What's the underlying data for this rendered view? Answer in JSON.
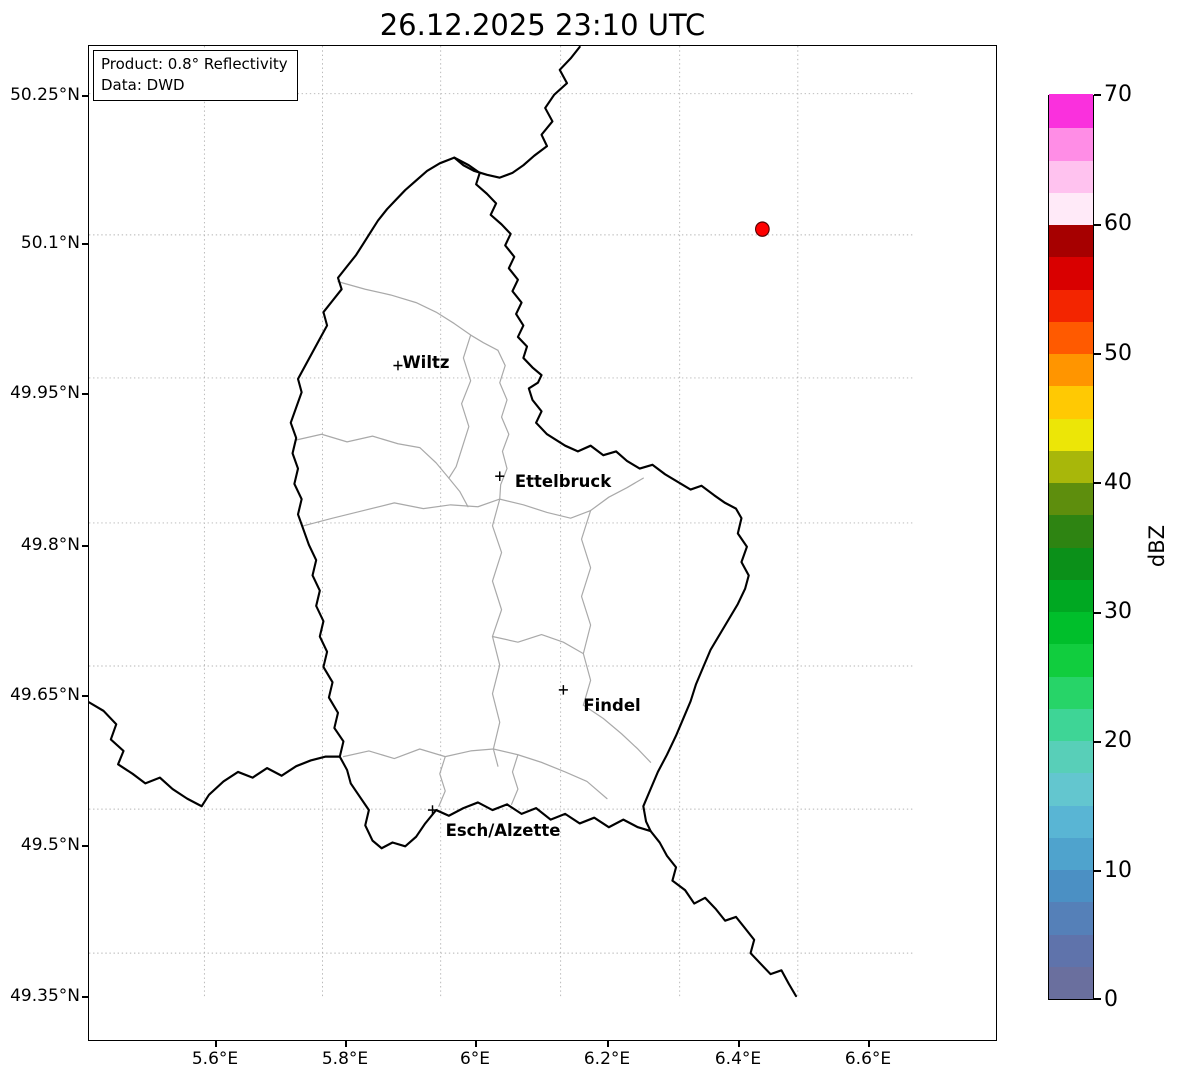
{
  "title": "26.12.2025 23:10 UTC",
  "info_box": {
    "product": "Product: 0.8° Reflectivity",
    "data_source": "Data: DWD"
  },
  "axes": {
    "x_tick_labels": [
      "5.6°E",
      "5.8°E",
      "6°E",
      "6.2°E",
      "6.4°E",
      "6.6°E"
    ],
    "y_tick_labels": [
      "50.25°N",
      "50.1°N",
      "49.95°N",
      "49.8°N",
      "49.65°N",
      "49.5°N",
      "49.35°N"
    ]
  },
  "map": {
    "region": "Luxembourg",
    "cities": [
      {
        "name": "Wiltz"
      },
      {
        "name": "Ettelbruck"
      },
      {
        "name": "Findel"
      },
      {
        "name": "Esch/Alzette"
      }
    ],
    "radar_marker_color": "#ff0000",
    "border_color": "#000000",
    "district_border_color": "#aaaaaa"
  },
  "colorbar": {
    "label": "dBZ",
    "min": 0,
    "max": 70,
    "tick_labels": [
      "0",
      "10",
      "20",
      "30",
      "40",
      "50",
      "60",
      "70"
    ],
    "colors_bottom_to_top": [
      "#6a6f9e",
      "#5f73ab",
      "#5580b8",
      "#4b90c4",
      "#4fa3cd",
      "#59b5d4",
      "#63c6cf",
      "#58cfb8",
      "#3ed596",
      "#27d468",
      "#11cd3e",
      "#00bf2b",
      "#00a822",
      "#0b9019",
      "#2e8412",
      "#5e8e0d",
      "#a8b70a",
      "#ece607",
      "#ffc903",
      "#ff9500",
      "#ff5a00",
      "#f32500",
      "#d90000",
      "#a60000",
      "#ffeaf8",
      "#ffc2ef",
      "#ff8de6",
      "#fa30dd"
    ]
  },
  "chart_data": {
    "type": "map",
    "title": "26.12.2025 23:10 UTC",
    "product": "0.8° Reflectivity",
    "data_source": "DWD",
    "x_axis": {
      "ticks": [
        "5.6°E",
        "5.8°E",
        "6°E",
        "6.2°E",
        "6.4°E",
        "6.6°E"
      ]
    },
    "y_axis": {
      "ticks": [
        "50.25°N",
        "50.1°N",
        "49.95°N",
        "49.8°N",
        "49.65°N",
        "49.5°N",
        "49.35°N"
      ]
    },
    "colorbar": {
      "label": "dBZ",
      "range": [
        0,
        70
      ],
      "ticks": [
        0,
        10,
        20,
        30,
        40,
        50,
        60,
        70
      ]
    },
    "grid": "dotted",
    "annotations": {
      "cities": [
        "Wiltz",
        "Ettelbruck",
        "Findel",
        "Esch/Alzette"
      ],
      "radar_site_marker": {
        "approx_lon": "6.55°E",
        "approx_lat": "50.1°N"
      },
      "reflectivity_echoes": "none visible"
    }
  }
}
